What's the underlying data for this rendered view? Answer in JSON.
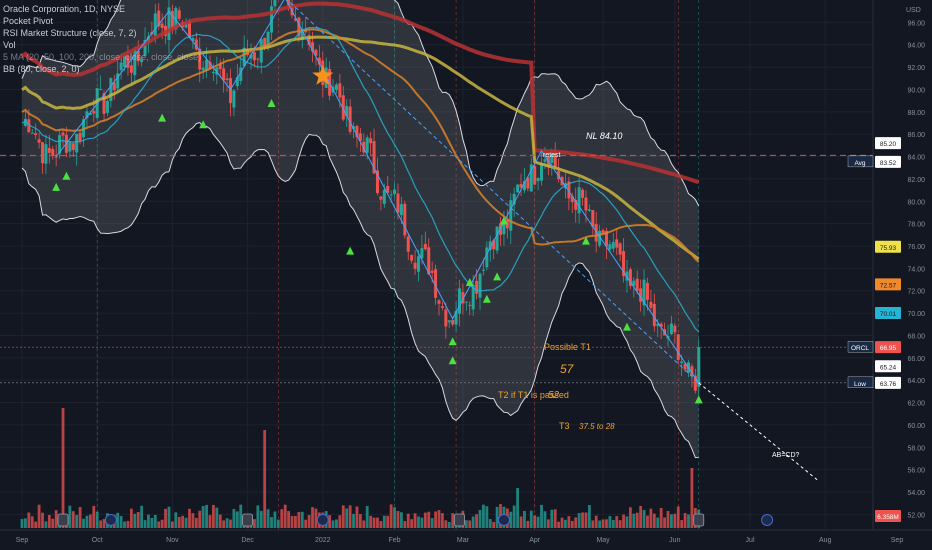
{
  "header": {
    "lines": [
      "Oracle Corporation, 1D, NYSE",
      "Pocket Pivot",
      "RSI Market Structure (close, 7, 2)",
      "Vol",
      "5 MA (20, 50, 100, 200, close, close, close, close)",
      "BB (80, close, 2, 0)"
    ],
    "currency": "USD"
  },
  "price_axis": {
    "ticks": [
      "96.00",
      "94.00",
      "92.00",
      "90.00",
      "88.00",
      "86.00",
      "84.00",
      "82.00",
      "80.00",
      "78.00",
      "76.00",
      "74.00",
      "72.00",
      "70.00",
      "68.00",
      "66.00",
      "64.00",
      "62.00",
      "60.00",
      "58.00",
      "56.00",
      "54.00",
      "52.00"
    ],
    "tick_values": [
      96,
      94,
      92,
      90,
      88,
      86,
      84,
      82,
      80,
      78,
      76,
      74,
      72,
      70,
      68,
      66,
      64,
      62,
      60,
      58,
      56,
      54,
      52
    ],
    "badges": [
      {
        "key": "bb_upper",
        "text": "85.20",
        "value": 85.2,
        "bg": "#ffffff",
        "fg": "#131722"
      },
      {
        "key": "avg",
        "label": "Avg",
        "text": "83.52",
        "value": 83.52,
        "bg": "#ffffff",
        "fg": "#131722"
      },
      {
        "key": "ma100",
        "text": "75.93",
        "value": 75.93,
        "bg": "#f0e04a",
        "fg": "#131722"
      },
      {
        "key": "ma50",
        "text": "72.57",
        "value": 72.57,
        "bg": "#f0892a",
        "fg": "#131722"
      },
      {
        "key": "ma20",
        "text": "70.01",
        "value": 70.01,
        "bg": "#26b4d4",
        "fg": "#131722"
      },
      {
        "key": "orcl",
        "label": "ORCL",
        "text": "66.95",
        "value": 66.95,
        "bg": "#ef5350",
        "fg": "#ffffff"
      },
      {
        "key": "bb_lower",
        "text": "65.24",
        "value": 65.24,
        "bg": "#ffffff",
        "fg": "#131722"
      },
      {
        "key": "low",
        "label": "Low",
        "text": "63.76",
        "value": 63.76,
        "bg": "#ffffff",
        "fg": "#131722"
      },
      {
        "key": "vol",
        "text": "6.358M",
        "value": 6.358,
        "bg": "#ef5350",
        "fg": "#ffffff"
      }
    ]
  },
  "time_axis": {
    "labels": [
      "Sep",
      "Oct",
      "Nov",
      "Dec",
      "2022",
      "Feb",
      "Mar",
      "Apr",
      "May",
      "Jun",
      "Jul",
      "Aug",
      "Sep"
    ],
    "day_index": [
      0,
      22,
      44,
      66,
      88,
      109,
      129,
      150,
      170,
      191,
      213,
      235,
      256
    ]
  },
  "annotations": {
    "nl": "NL 84.10",
    "retest": "retest",
    "t1_label": "Possible T1",
    "t1_value": "57",
    "t2_label": "T2 if T1 is passed",
    "t2_value": "52",
    "t3_label": "T3",
    "t3_value": "37.5 to 28",
    "abcd": "AB=CD?"
  },
  "colors": {
    "background": "#131722",
    "up": "#26a69a",
    "down": "#ef5350",
    "ma20": "#26b4d4",
    "ma50": "#d98328",
    "ma100": "#c8b641",
    "ma200": "#b83232",
    "accent_text": "#f0a030",
    "star": "#f7931a",
    "signal": "#4ce040"
  },
  "chart_data": {
    "type": "candlestick",
    "price_range": [
      50.6,
      98.0
    ],
    "last_close": 66.95,
    "pivot_points": [
      {
        "day": 10,
        "price": 84.0
      },
      {
        "day": 43,
        "price": 97.0
      },
      {
        "day": 61,
        "price": 90.0
      },
      {
        "day": 77,
        "price": 98.2
      },
      {
        "day": 126,
        "price": 69.5
      },
      {
        "day": 152,
        "price": 84.5
      },
      {
        "day": 198,
        "price": 63.76
      }
    ],
    "abcd_target": {
      "day": 233,
      "price": 55.0
    },
    "support_lines": [
      {
        "label": "NL 84.10",
        "price": 84.1
      }
    ],
    "volume_events": [
      {
        "type": "E",
        "day": 12
      },
      {
        "type": "D",
        "day": 26
      },
      {
        "type": "E",
        "day": 66
      },
      {
        "type": "D",
        "day": 88
      },
      {
        "type": "E",
        "day": 128
      },
      {
        "type": "D",
        "day": 141
      },
      {
        "type": "E",
        "day": 198
      },
      {
        "type": "D",
        "day": 218
      }
    ],
    "ma_last": {
      "ma20": 70.01,
      "ma50": 72.57,
      "ma100": 75.93,
      "ma200": 83.52
    },
    "bb_last": {
      "upper": 85.2,
      "lower": 65.24
    }
  }
}
